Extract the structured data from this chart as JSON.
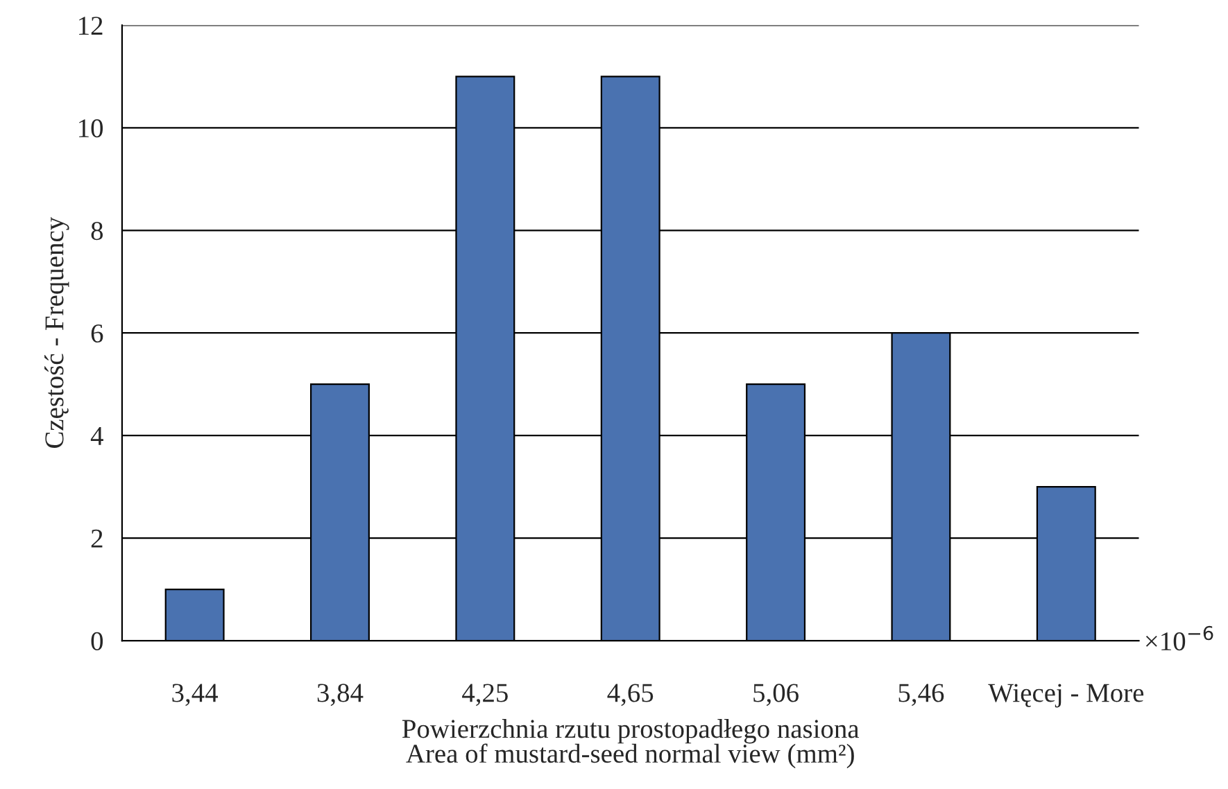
{
  "chart_data": {
    "type": "bar",
    "categories": [
      "3,44",
      "3,84",
      "4,25",
      "4,65",
      "5,06",
      "5,46",
      "Więcej - More"
    ],
    "values": [
      1,
      5,
      11,
      11,
      5,
      6,
      3
    ],
    "color": "#4a72b0",
    "xlabel": "Powierzchnia rzutu prostopadłego nasiona\nArea of mustard-seed normal view (mm²)",
    "ylabel": "Częstość - Frequency",
    "ylim": [
      0,
      12
    ],
    "yticks": [
      0,
      2,
      4,
      6,
      8,
      10,
      12
    ],
    "grid": "y",
    "legend": false,
    "annotations": [
      "×10$^{−6}$"
    ]
  }
}
